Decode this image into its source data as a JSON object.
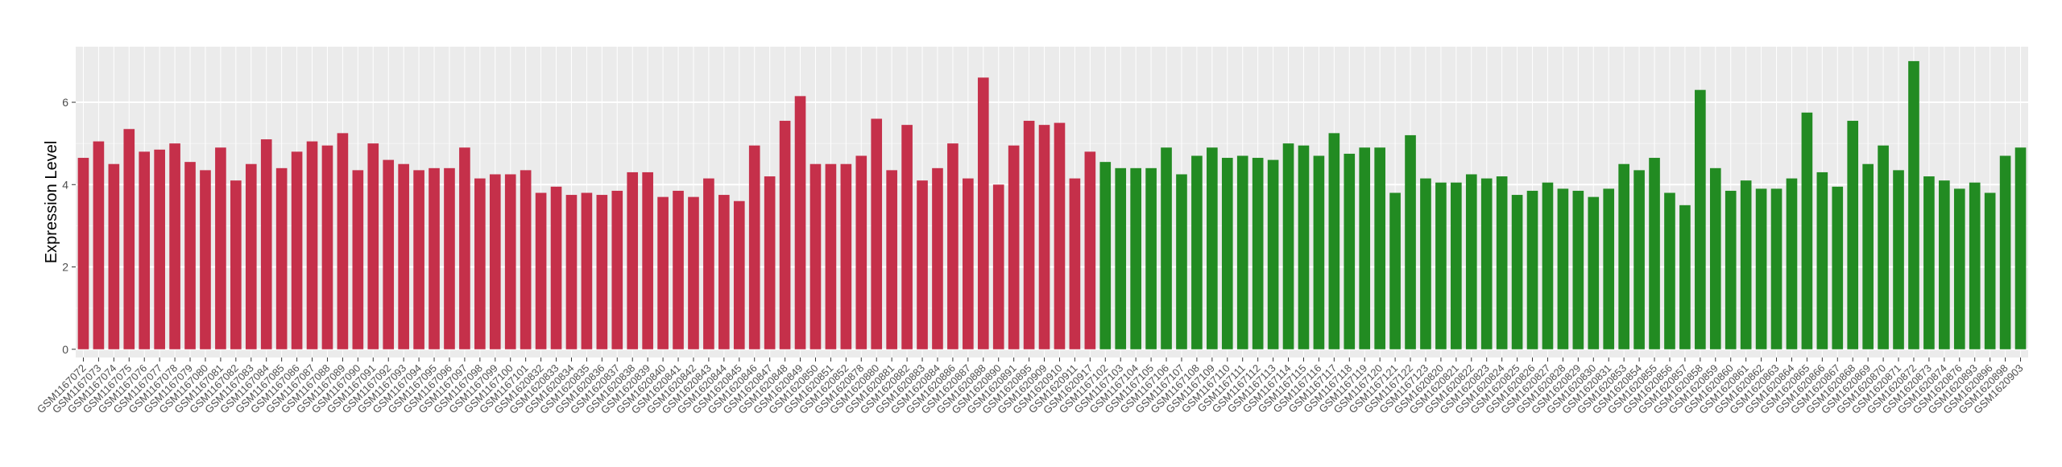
{
  "chart_data": {
    "type": "bar",
    "y_label": "Expression Level",
    "ylim": [
      -0.2,
      7.35
    ],
    "yticks": [
      0,
      2,
      4,
      6
    ],
    "grid": true,
    "series": [
      {
        "color": "#c5304a",
        "categories": [
          "GSM1167072",
          "GSM1167073",
          "GSM1167074",
          "GSM1167075",
          "GSM1167076",
          "GSM1167077",
          "GSM1167078",
          "GSM1167079",
          "GSM1167080",
          "GSM1167081",
          "GSM1167082",
          "GSM1167083",
          "GSM1167084",
          "GSM1167085",
          "GSM1167086",
          "GSM1167087",
          "GSM1167088",
          "GSM1167089",
          "GSM1167090",
          "GSM1167091",
          "GSM1167092",
          "GSM1167093",
          "GSM1167094",
          "GSM1167095",
          "GSM1167096",
          "GSM1167097",
          "GSM1167098",
          "GSM1167099",
          "GSM1167100",
          "GSM1167101",
          "GSM1620832",
          "GSM1620833",
          "GSM1620834",
          "GSM1620835",
          "GSM1620836",
          "GSM1620837",
          "GSM1620838",
          "GSM1620839",
          "GSM1620840",
          "GSM1620841",
          "GSM1620842",
          "GSM1620843",
          "GSM1620844",
          "GSM1620845",
          "GSM1620846",
          "GSM1620847",
          "GSM1620848",
          "GSM1620849",
          "GSM1620850",
          "GSM1620851",
          "GSM1620852",
          "GSM1620878",
          "GSM1620880",
          "GSM1620881",
          "GSM1620882",
          "GSM1620883",
          "GSM1620884",
          "GSM1620886",
          "GSM1620887",
          "GSM1620888",
          "GSM1620890",
          "GSM1620891",
          "GSM1620895",
          "GSM1620909",
          "GSM1620910",
          "GSM1620911",
          "GSM1620917"
        ],
        "values": [
          4.65,
          5.05,
          4.5,
          5.35,
          4.8,
          4.85,
          5.0,
          4.55,
          4.35,
          4.9,
          4.1,
          4.5,
          5.1,
          4.4,
          4.8,
          5.05,
          4.95,
          5.25,
          4.35,
          5.0,
          4.6,
          4.5,
          4.35,
          4.4,
          4.4,
          4.9,
          4.15,
          4.25,
          4.25,
          4.35,
          3.8,
          3.95,
          3.75,
          3.8,
          3.75,
          3.85,
          4.3,
          4.3,
          3.7,
          3.85,
          3.7,
          4.15,
          3.75,
          3.6,
          4.95,
          4.2,
          5.55,
          6.15,
          4.5,
          4.5,
          4.5,
          4.7,
          5.6,
          4.35,
          5.45,
          4.1,
          4.4,
          5.0,
          4.15,
          6.6,
          4.0,
          4.95,
          5.55,
          5.45,
          5.5,
          4.15,
          4.8
        ]
      },
      {
        "color": "#228b22",
        "categories": [
          "GSM1167102",
          "GSM1167103",
          "GSM1167104",
          "GSM1167105",
          "GSM1167106",
          "GSM1167107",
          "GSM1167108",
          "GSM1167109",
          "GSM1167110",
          "GSM1167111",
          "GSM1167112",
          "GSM1167113",
          "GSM1167114",
          "GSM1167115",
          "GSM1167116",
          "GSM1167117",
          "GSM1167118",
          "GSM1167119",
          "GSM1167120",
          "GSM1167121",
          "GSM1167122",
          "GSM1167123",
          "GSM1620820",
          "GSM1620821",
          "GSM1620822",
          "GSM1620823",
          "GSM1620824",
          "GSM1620825",
          "GSM1620826",
          "GSM1620827",
          "GSM1620828",
          "GSM1620829",
          "GSM1620830",
          "GSM1620831",
          "GSM1620853",
          "GSM1620854",
          "GSM1620855",
          "GSM1620856",
          "GSM1620857",
          "GSM1620858",
          "GSM1620859",
          "GSM1620860",
          "GSM1620861",
          "GSM1620862",
          "GSM1620863",
          "GSM1620864",
          "GSM1620865",
          "GSM1620866",
          "GSM1620867",
          "GSM1620868",
          "GSM1620869",
          "GSM1620870",
          "GSM1620871",
          "GSM1620872",
          "GSM1620873",
          "GSM1620874",
          "GSM1620876",
          "GSM1620893",
          "GSM1620896",
          "GSM1620898",
          "GSM1620903"
        ],
        "values": [
          4.55,
          4.4,
          4.4,
          4.4,
          4.9,
          4.25,
          4.7,
          4.9,
          4.65,
          4.7,
          4.65,
          4.6,
          5.0,
          4.95,
          4.7,
          5.25,
          4.75,
          4.9,
          4.9,
          3.8,
          5.2,
          4.15,
          4.05,
          4.05,
          4.25,
          4.15,
          4.2,
          3.75,
          3.85,
          4.05,
          3.9,
          3.85,
          3.7,
          3.9,
          4.5,
          4.35,
          4.65,
          3.8,
          3.5,
          6.3,
          4.4,
          3.85,
          4.1,
          3.9,
          3.9,
          4.15,
          5.75,
          4.3,
          3.95,
          5.55,
          4.5,
          4.95,
          4.35,
          7.0,
          4.2,
          4.1,
          3.9,
          4.05,
          3.8,
          4.7,
          4.9
        ]
      }
    ]
  }
}
